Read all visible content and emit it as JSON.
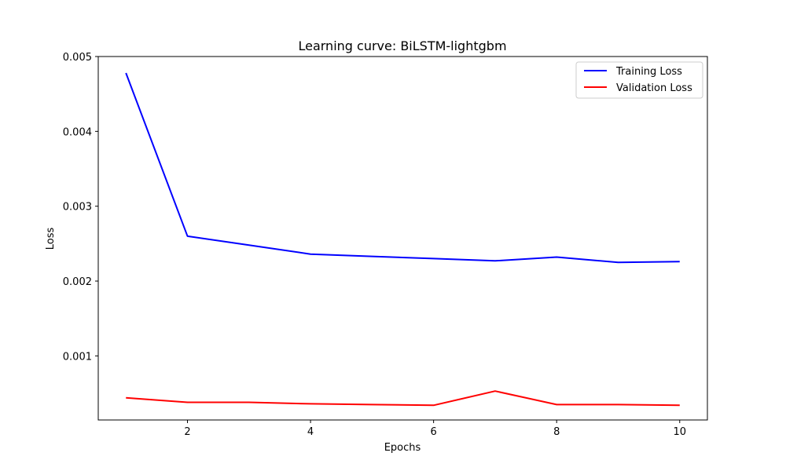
{
  "chart_data": {
    "type": "line",
    "title": "Learning curve: BiLSTM-lightgbm",
    "xlabel": "Epochs",
    "ylabel": "Loss",
    "xlim": [
      0.55,
      10.45
    ],
    "ylim": [
      0.000144,
      0.005
    ],
    "x_ticks": [
      2,
      4,
      6,
      8,
      10
    ],
    "y_ticks": [
      0.001,
      0.002,
      0.003,
      0.004,
      0.005
    ],
    "x_tick_labels": [
      "2",
      "4",
      "6",
      "8",
      "10"
    ],
    "y_tick_labels": [
      "0.001",
      "0.002",
      "0.003",
      "0.004",
      "0.005"
    ],
    "x": [
      1,
      2,
      3,
      4,
      5,
      6,
      7,
      8,
      9,
      10
    ],
    "series": [
      {
        "name": "Training Loss",
        "color": "#0000ff",
        "values": [
          0.00478,
          0.0026,
          0.00248,
          0.00236,
          0.00233,
          0.0023,
          0.00227,
          0.00232,
          0.00225,
          0.00226
        ]
      },
      {
        "name": "Validation Loss",
        "color": "#ff0000",
        "values": [
          0.00044,
          0.00038,
          0.00038,
          0.00036,
          0.00035,
          0.00034,
          0.00053,
          0.00035,
          0.00035,
          0.00034
        ]
      }
    ],
    "grid": false,
    "legend_position": "top-right"
  }
}
